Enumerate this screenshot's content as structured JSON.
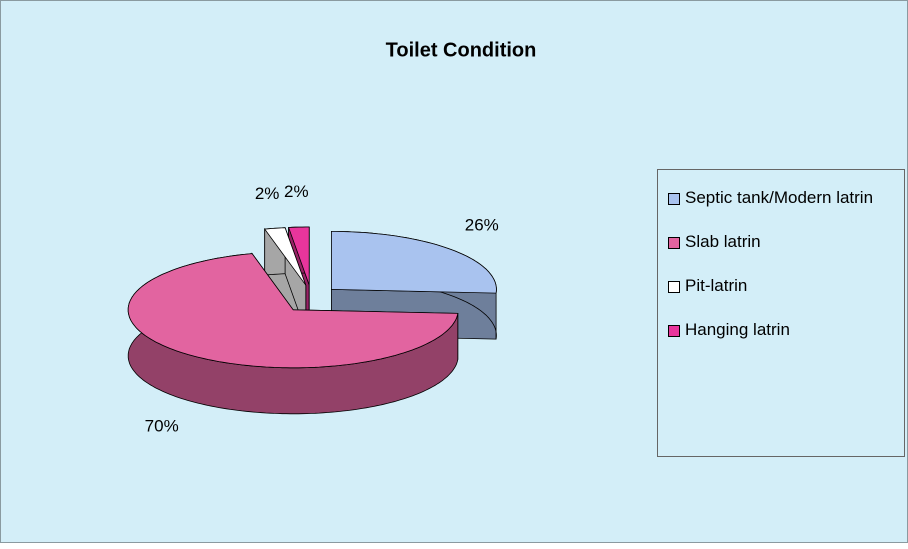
{
  "chart_data": {
    "type": "pie",
    "title": "Toilet Condition",
    "categories": [
      "Septic tank/Modern latrin",
      "Slab latrin",
      "Pit-latrin",
      "Hanging latrin"
    ],
    "values": [
      26,
      70,
      2,
      2
    ],
    "value_labels": [
      "26%",
      "70%",
      "2%",
      "2%"
    ],
    "colors": [
      "#a9c3ef",
      "#e264a0",
      "#ffffff",
      "#e8359c"
    ]
  }
}
